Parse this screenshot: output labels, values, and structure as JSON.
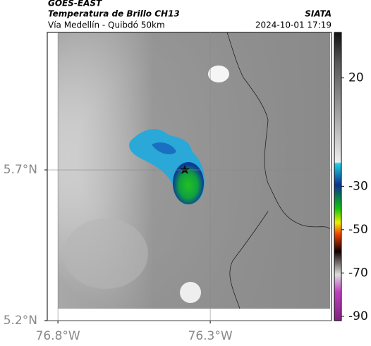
{
  "header": {
    "title": "GOES-EAST",
    "subtitle": "Temperatura de Brillo CH13",
    "location": "Vía Medellín - Quibdó 50km",
    "source": "SIATA",
    "datetime": "2024-10-01 17:19"
  },
  "map": {
    "xlim": [
      -76.835,
      -75.902
    ],
    "ylim": [
      5.2,
      6.156
    ],
    "xticks": [
      {
        "value": -76.8,
        "label": "76.8°W"
      },
      {
        "value": -76.3,
        "label": "76.3°W"
      }
    ],
    "yticks": [
      {
        "value": 5.2,
        "label": "5.2°N"
      },
      {
        "value": 5.7,
        "label": "5.7°N"
      }
    ],
    "colorbar": {
      "lim": [
        -92,
        41
      ],
      "ticks": [
        20,
        -30,
        -50,
        -70,
        -90
      ]
    }
  }
}
